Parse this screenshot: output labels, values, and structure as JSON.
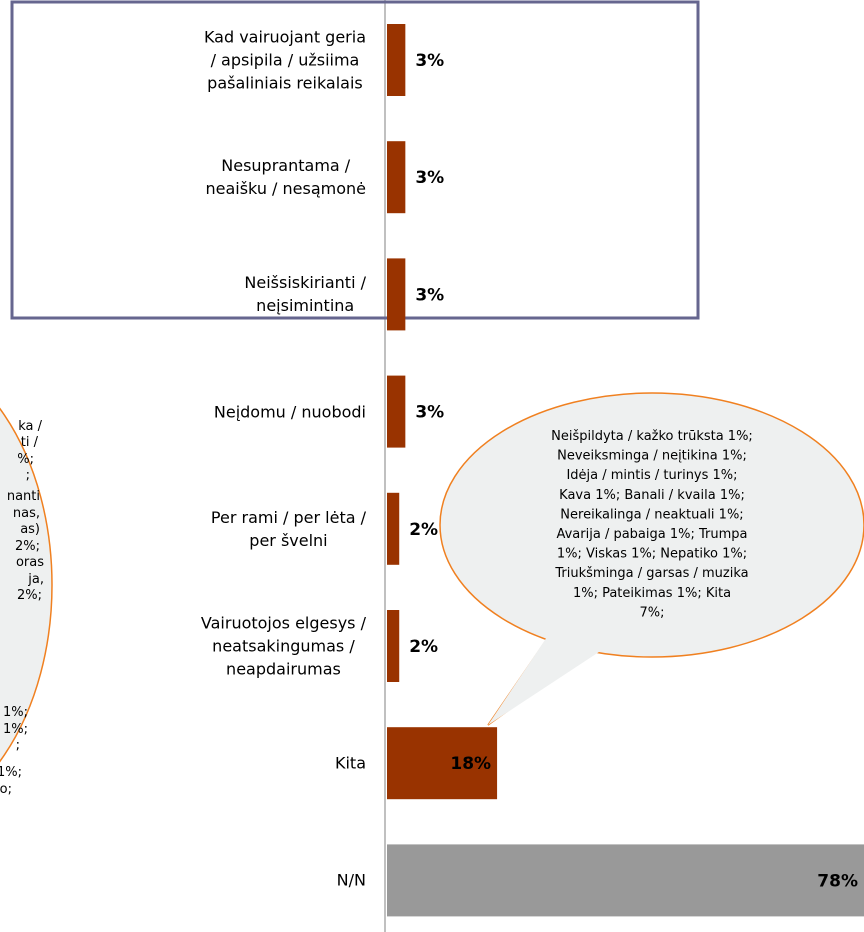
{
  "chart_data": {
    "type": "bar",
    "orientation": "horizontal",
    "categories": [
      "Kad vairuojant geria\n/ apsipila / užsiima\npašaliniais reikalais",
      "Nesuprantama /\nneaišku / nesąmonė",
      "Neišsiskirianti /\nneįsimintina",
      "Neįdomu / nuobodi",
      "Per rami / per lėta /\nper švelni",
      "Vairuotojos elgesys /\nneatsakingumas /\nneapdairumas",
      "Kita",
      "N/N"
    ],
    "values": [
      3,
      3,
      3,
      3,
      2,
      2,
      18,
      78
    ],
    "value_labels": [
      "3%",
      "3%",
      "3%",
      "3%",
      "2%",
      "2%",
      "18%",
      "78%"
    ],
    "colors": [
      "#993300",
      "#993300",
      "#993300",
      "#993300",
      "#993300",
      "#993300",
      "#993300",
      "#999999"
    ],
    "xlim": [
      0,
      78
    ],
    "annotations": [
      {
        "lines": [
          "Neišpildyta / kažko trūksta 1%;",
          "Neveiksminga / neįtikina 1%;",
          "Idėja / mintis / turinys 1%;",
          "Kava 1%; Banali / kvaila 1%;",
          "Nereikalinga / neaktuali 1%;",
          "Avarija / pabaiga 1%; Trumpa",
          "1%; Viskas 1%; Nepatiko 1%;",
          "Triukšminga / garsas / muzika",
          "1%; Pateikimas 1%; Kita",
          "7%;"
        ]
      },
      {
        "lines": [
          "ka /",
          "ti /",
          "%;",
          ";",
          "nanti",
          "nas,",
          "as)",
          "2%;",
          "oras",
          "ja,",
          "2%;",
          "1%;",
          "1%;",
          ";",
          "1%;",
          "o;"
        ]
      }
    ]
  }
}
